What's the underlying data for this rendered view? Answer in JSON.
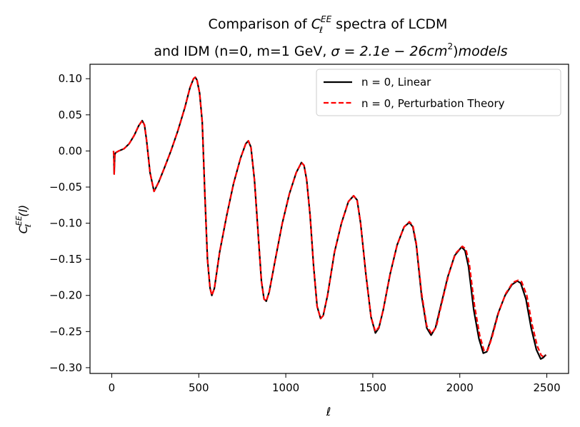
{
  "chart_data": {
    "type": "line",
    "title": {
      "line1_prefix": "Comparison of ",
      "line1_symbol": "C",
      "line1_sup": "EE",
      "line1_sub": "ℓ",
      "line1_suffix": " spectra of LCDM",
      "line2_text": "and IDM (n=0, m=1 GeV, ",
      "line2_math": "σ = 2.1e − 26cm",
      "line2_sup": "2",
      "line2_close": ")",
      "line2_tail": "models"
    },
    "xlabel": "ℓ",
    "ylabel": {
      "symbol": "C",
      "sup": "EE",
      "sub": "ℓ",
      "arg": "(l)"
    },
    "xlim": [
      -125,
      2625
    ],
    "ylim": [
      -0.308,
      0.12
    ],
    "xticks": [
      0,
      500,
      1000,
      1500,
      2000,
      2500
    ],
    "xtick_labels": [
      "0",
      "500",
      "1000",
      "1500",
      "2000",
      "2500"
    ],
    "yticks": [
      0.1,
      0.05,
      0.0,
      -0.05,
      -0.1,
      -0.15,
      -0.2,
      -0.25,
      -0.3
    ],
    "ytick_labels": [
      "0.10",
      "0.05",
      "0.00",
      "−0.05",
      "−0.10",
      "−0.15",
      "−0.20",
      "−0.25",
      "−0.30"
    ],
    "series": [
      {
        "name": "n = 0, Linear",
        "color": "#000000",
        "style": "solid",
        "points": [
          [
            10,
            0.0
          ],
          [
            12,
            -0.005
          ],
          [
            14,
            -0.032
          ],
          [
            16,
            -0.015
          ],
          [
            18,
            -0.004
          ],
          [
            25,
            -0.002
          ],
          [
            40,
            0.0
          ],
          [
            70,
            0.003
          ],
          [
            100,
            0.01
          ],
          [
            130,
            0.022
          ],
          [
            155,
            0.035
          ],
          [
            175,
            0.042
          ],
          [
            188,
            0.036
          ],
          [
            200,
            0.015
          ],
          [
            220,
            -0.03
          ],
          [
            243,
            -0.056
          ],
          [
            270,
            -0.043
          ],
          [
            300,
            -0.025
          ],
          [
            340,
            0.0
          ],
          [
            380,
            0.028
          ],
          [
            420,
            0.06
          ],
          [
            450,
            0.088
          ],
          [
            470,
            0.1
          ],
          [
            480,
            0.102
          ],
          [
            490,
            0.098
          ],
          [
            505,
            0.08
          ],
          [
            520,
            0.04
          ],
          [
            535,
            -0.06
          ],
          [
            550,
            -0.15
          ],
          [
            565,
            -0.19
          ],
          [
            575,
            -0.2
          ],
          [
            590,
            -0.19
          ],
          [
            620,
            -0.14
          ],
          [
            660,
            -0.09
          ],
          [
            700,
            -0.045
          ],
          [
            740,
            -0.01
          ],
          [
            770,
            0.01
          ],
          [
            785,
            0.014
          ],
          [
            800,
            0.005
          ],
          [
            820,
            -0.04
          ],
          [
            840,
            -0.11
          ],
          [
            860,
            -0.18
          ],
          [
            875,
            -0.205
          ],
          [
            888,
            -0.208
          ],
          [
            905,
            -0.195
          ],
          [
            940,
            -0.15
          ],
          [
            980,
            -0.1
          ],
          [
            1020,
            -0.06
          ],
          [
            1060,
            -0.03
          ],
          [
            1090,
            -0.016
          ],
          [
            1105,
            -0.02
          ],
          [
            1120,
            -0.04
          ],
          [
            1140,
            -0.09
          ],
          [
            1160,
            -0.16
          ],
          [
            1180,
            -0.215
          ],
          [
            1200,
            -0.232
          ],
          [
            1215,
            -0.228
          ],
          [
            1240,
            -0.2
          ],
          [
            1280,
            -0.14
          ],
          [
            1320,
            -0.1
          ],
          [
            1360,
            -0.07
          ],
          [
            1390,
            -0.062
          ],
          [
            1410,
            -0.068
          ],
          [
            1430,
            -0.1
          ],
          [
            1460,
            -0.17
          ],
          [
            1490,
            -0.23
          ],
          [
            1515,
            -0.252
          ],
          [
            1535,
            -0.245
          ],
          [
            1560,
            -0.22
          ],
          [
            1600,
            -0.17
          ],
          [
            1640,
            -0.13
          ],
          [
            1680,
            -0.105
          ],
          [
            1710,
            -0.099
          ],
          [
            1730,
            -0.105
          ],
          [
            1750,
            -0.13
          ],
          [
            1780,
            -0.2
          ],
          [
            1810,
            -0.245
          ],
          [
            1835,
            -0.255
          ],
          [
            1860,
            -0.245
          ],
          [
            1890,
            -0.215
          ],
          [
            1930,
            -0.175
          ],
          [
            1970,
            -0.145
          ],
          [
            2010,
            -0.133
          ],
          [
            2030,
            -0.138
          ],
          [
            2050,
            -0.16
          ],
          [
            2080,
            -0.22
          ],
          [
            2110,
            -0.26
          ],
          [
            2135,
            -0.28
          ],
          [
            2155,
            -0.278
          ],
          [
            2180,
            -0.26
          ],
          [
            2220,
            -0.225
          ],
          [
            2260,
            -0.2
          ],
          [
            2300,
            -0.185
          ],
          [
            2330,
            -0.18
          ],
          [
            2350,
            -0.183
          ],
          [
            2380,
            -0.205
          ],
          [
            2410,
            -0.245
          ],
          [
            2440,
            -0.275
          ],
          [
            2465,
            -0.288
          ],
          [
            2480,
            -0.286
          ],
          [
            2495,
            -0.282
          ]
        ]
      },
      {
        "name": "n = 0, Perturbation Theory",
        "color": "#ff0000",
        "style": "dashed",
        "points": [
          [
            10,
            0.0
          ],
          [
            12,
            -0.005
          ],
          [
            14,
            -0.032
          ],
          [
            16,
            -0.015
          ],
          [
            18,
            -0.004
          ],
          [
            25,
            -0.002
          ],
          [
            40,
            0.0
          ],
          [
            70,
            0.003
          ],
          [
            100,
            0.01
          ],
          [
            130,
            0.022
          ],
          [
            155,
            0.035
          ],
          [
            175,
            0.042
          ],
          [
            188,
            0.036
          ],
          [
            200,
            0.015
          ],
          [
            220,
            -0.03
          ],
          [
            243,
            -0.056
          ],
          [
            270,
            -0.043
          ],
          [
            300,
            -0.025
          ],
          [
            340,
            0.0
          ],
          [
            380,
            0.028
          ],
          [
            420,
            0.06
          ],
          [
            450,
            0.088
          ],
          [
            470,
            0.1
          ],
          [
            480,
            0.102
          ],
          [
            490,
            0.098
          ],
          [
            505,
            0.08
          ],
          [
            520,
            0.04
          ],
          [
            535,
            -0.06
          ],
          [
            550,
            -0.15
          ],
          [
            565,
            -0.19
          ],
          [
            575,
            -0.2
          ],
          [
            590,
            -0.19
          ],
          [
            620,
            -0.14
          ],
          [
            660,
            -0.09
          ],
          [
            700,
            -0.045
          ],
          [
            740,
            -0.01
          ],
          [
            770,
            0.01
          ],
          [
            785,
            0.014
          ],
          [
            800,
            0.005
          ],
          [
            820,
            -0.04
          ],
          [
            840,
            -0.11
          ],
          [
            860,
            -0.18
          ],
          [
            875,
            -0.205
          ],
          [
            888,
            -0.208
          ],
          [
            905,
            -0.195
          ],
          [
            940,
            -0.15
          ],
          [
            980,
            -0.1
          ],
          [
            1020,
            -0.06
          ],
          [
            1060,
            -0.03
          ],
          [
            1090,
            -0.016
          ],
          [
            1105,
            -0.02
          ],
          [
            1120,
            -0.04
          ],
          [
            1140,
            -0.09
          ],
          [
            1160,
            -0.16
          ],
          [
            1180,
            -0.215
          ],
          [
            1200,
            -0.232
          ],
          [
            1215,
            -0.228
          ],
          [
            1240,
            -0.2
          ],
          [
            1280,
            -0.14
          ],
          [
            1320,
            -0.1
          ],
          [
            1360,
            -0.07
          ],
          [
            1390,
            -0.062
          ],
          [
            1410,
            -0.068
          ],
          [
            1430,
            -0.1
          ],
          [
            1460,
            -0.17
          ],
          [
            1490,
            -0.23
          ],
          [
            1515,
            -0.25
          ],
          [
            1535,
            -0.244
          ],
          [
            1560,
            -0.22
          ],
          [
            1600,
            -0.17
          ],
          [
            1640,
            -0.13
          ],
          [
            1680,
            -0.105
          ],
          [
            1710,
            -0.098
          ],
          [
            1730,
            -0.103
          ],
          [
            1750,
            -0.128
          ],
          [
            1780,
            -0.196
          ],
          [
            1810,
            -0.242
          ],
          [
            1838,
            -0.253
          ],
          [
            1865,
            -0.243
          ],
          [
            1895,
            -0.212
          ],
          [
            1935,
            -0.172
          ],
          [
            1975,
            -0.142
          ],
          [
            2015,
            -0.132
          ],
          [
            2035,
            -0.136
          ],
          [
            2055,
            -0.157
          ],
          [
            2085,
            -0.215
          ],
          [
            2115,
            -0.256
          ],
          [
            2140,
            -0.277
          ],
          [
            2160,
            -0.276
          ],
          [
            2185,
            -0.258
          ],
          [
            2225,
            -0.222
          ],
          [
            2265,
            -0.197
          ],
          [
            2305,
            -0.182
          ],
          [
            2335,
            -0.179
          ],
          [
            2355,
            -0.181
          ],
          [
            2385,
            -0.2
          ],
          [
            2415,
            -0.24
          ],
          [
            2445,
            -0.27
          ],
          [
            2468,
            -0.283
          ],
          [
            2482,
            -0.285
          ],
          [
            2495,
            -0.283
          ]
        ]
      }
    ],
    "legend_position": "upper-right"
  }
}
